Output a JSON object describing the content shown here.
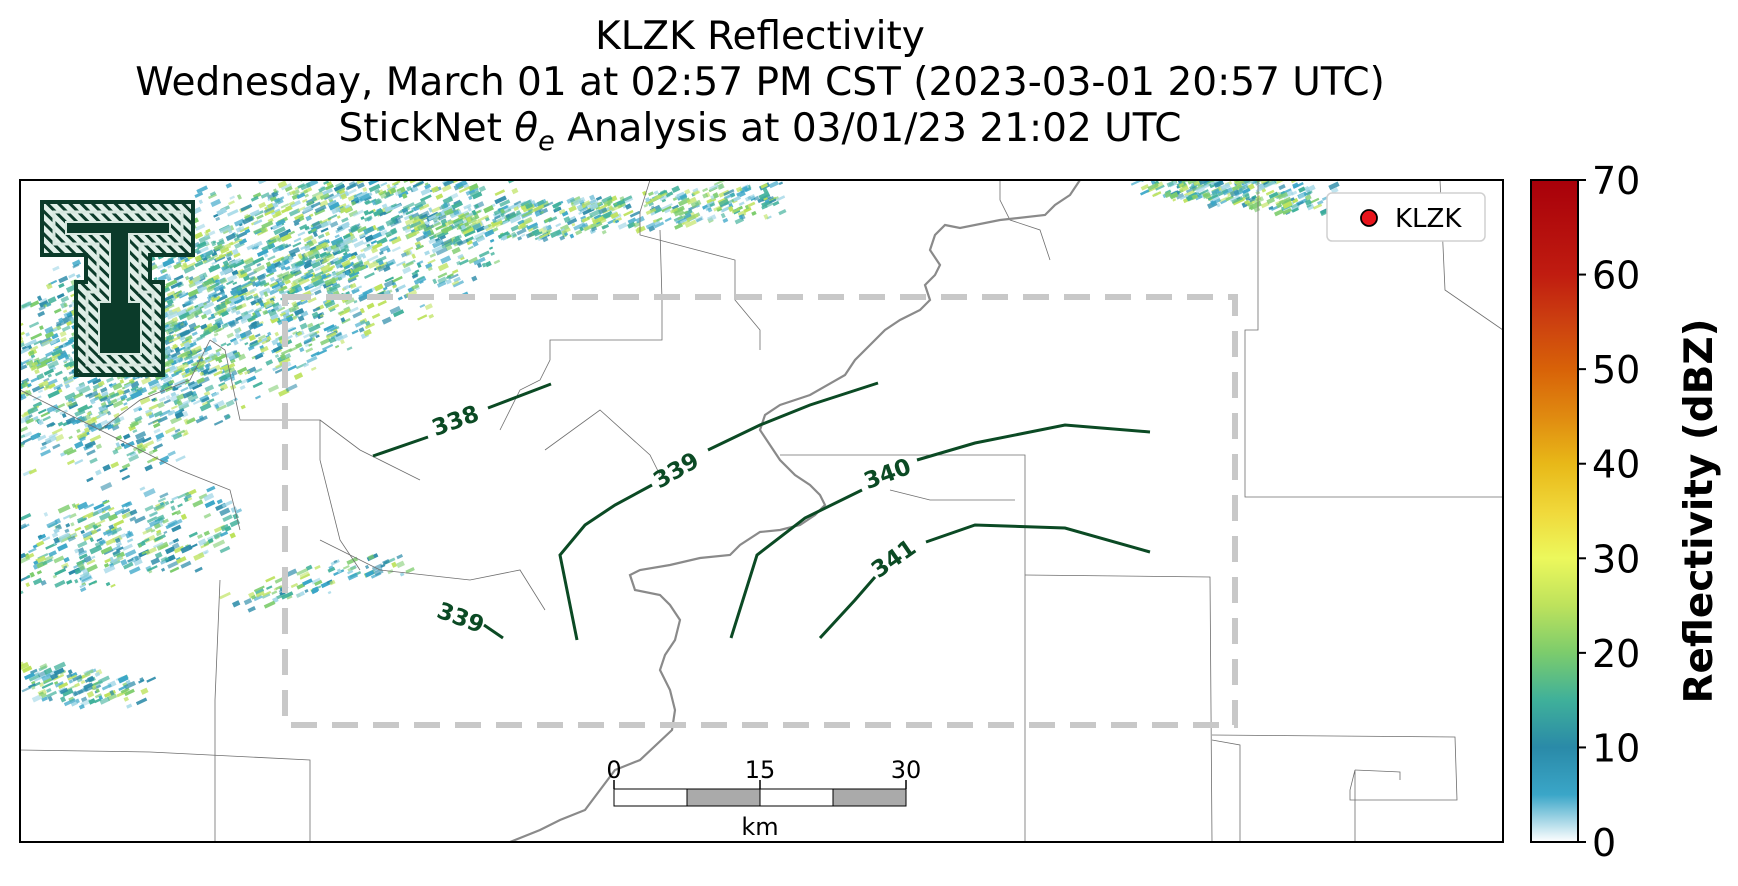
{
  "titles": {
    "line1": "KLZK Reflectivity",
    "line2": "Wednesday, March 01 at 02:57 PM CST (2023-03-01 20:57 UTC)",
    "line3_prefix": "StickNet ",
    "line3_theta": "θ",
    "line3_sub": "e",
    "line3_suffix": " Analysis at 03/01/23 21:02 UTC"
  },
  "legend": {
    "label": "KLZK",
    "marker_color": "#e8141c"
  },
  "logo": {
    "name": "Double T logo",
    "colors": {
      "fill": "#0b3b2a",
      "outline": "#d8e8e0"
    }
  },
  "contours": [
    {
      "label": "338"
    },
    {
      "label": "339"
    },
    {
      "label": "339"
    },
    {
      "label": "340"
    },
    {
      "label": "341"
    }
  ],
  "contour_color": "#0b4a24",
  "analysis_box_color": "#c8c8c8",
  "scale_bar": {
    "ticks": [
      "0",
      "15",
      "30"
    ],
    "unit": "km"
  },
  "colorbar": {
    "label": "Reflectivity (dBZ)",
    "ticks": [
      "0",
      "10",
      "20",
      "30",
      "40",
      "50",
      "60",
      "70"
    ],
    "min": 0,
    "max": 70,
    "stops": [
      {
        "value": 0,
        "color": "#ffffff"
      },
      {
        "value": 5,
        "color": "#3aa6c8"
      },
      {
        "value": 10,
        "color": "#2a8aa8"
      },
      {
        "value": 15,
        "color": "#3fb09a"
      },
      {
        "value": 20,
        "color": "#7ccc6c"
      },
      {
        "value": 25,
        "color": "#bde25c"
      },
      {
        "value": 30,
        "color": "#ecf85c"
      },
      {
        "value": 35,
        "color": "#f0d83a"
      },
      {
        "value": 40,
        "color": "#e8b818"
      },
      {
        "value": 45,
        "color": "#e08a10"
      },
      {
        "value": 50,
        "color": "#d86208"
      },
      {
        "value": 55,
        "color": "#cc4010"
      },
      {
        "value": 60,
        "color": "#c01c10"
      },
      {
        "value": 70,
        "color": "#a8000a"
      }
    ]
  },
  "echo_colors": [
    "#2a8aa8",
    "#3fb09a",
    "#7ccc6c",
    "#bde25c",
    "#3aa6c8",
    "#9fd6e6"
  ]
}
